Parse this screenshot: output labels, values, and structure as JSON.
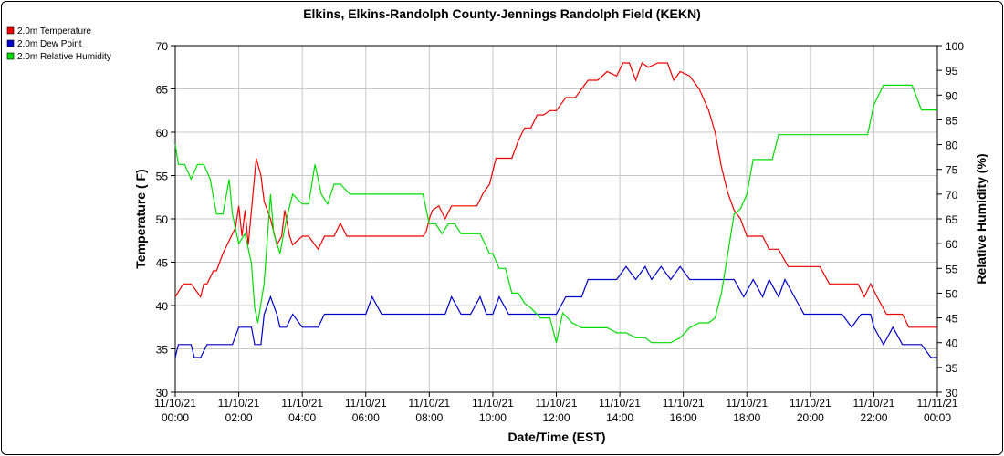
{
  "chart_data": {
    "type": "line",
    "title": "Elkins, Elkins-Randolph County-Jennings Randolph Field (KEKN)",
    "xlabel": "Date/Time (EST)",
    "ylabel": "Temperature ( F)",
    "y2label": "Relative Humidity (%)",
    "ylim": [
      30,
      70
    ],
    "y2lim": [
      30,
      100
    ],
    "yticks": [
      30,
      35,
      40,
      45,
      50,
      55,
      60,
      65,
      70
    ],
    "y2ticks": [
      30,
      35,
      40,
      45,
      50,
      55,
      60,
      65,
      70,
      75,
      80,
      85,
      90,
      95,
      100
    ],
    "xticks": [
      {
        "hour": 0,
        "date": "11/10/21",
        "time": "00:00"
      },
      {
        "hour": 2,
        "date": "11/10/21",
        "time": "02:00"
      },
      {
        "hour": 4,
        "date": "11/10/21",
        "time": "04:00"
      },
      {
        "hour": 6,
        "date": "11/10/21",
        "time": "06:00"
      },
      {
        "hour": 8,
        "date": "11/10/21",
        "time": "08:00"
      },
      {
        "hour": 10,
        "date": "11/10/21",
        "time": "10:00"
      },
      {
        "hour": 12,
        "date": "11/10/21",
        "time": "12:00"
      },
      {
        "hour": 14,
        "date": "11/10/21",
        "time": "14:00"
      },
      {
        "hour": 16,
        "date": "11/10/21",
        "time": "16:00"
      },
      {
        "hour": 18,
        "date": "11/10/21",
        "time": "18:00"
      },
      {
        "hour": 20,
        "date": "11/10/21",
        "time": "20:00"
      },
      {
        "hour": 22,
        "date": "11/10/21",
        "time": "22:00"
      },
      {
        "hour": 24,
        "date": "11/11/21",
        "time": "00:00"
      }
    ],
    "grid": true,
    "legend_position": "top-left",
    "series": [
      {
        "name": "2.0m Temperature",
        "color": "#ee0000",
        "axis": "left",
        "x": [
          0,
          0.25,
          0.5,
          0.8,
          0.9,
          1.0,
          1.2,
          1.3,
          1.5,
          1.7,
          1.9,
          2.0,
          2.1,
          2.2,
          2.3,
          2.5,
          2.55,
          2.7,
          2.8,
          3.0,
          3.1,
          3.2,
          3.35,
          3.45,
          3.6,
          3.7,
          4.0,
          4.2,
          4.5,
          4.7,
          4.9,
          5.0,
          5.2,
          5.4,
          5.6,
          5.7,
          6.0,
          6.5,
          7.0,
          7.5,
          7.8,
          7.9,
          8.0,
          8.1,
          8.3,
          8.5,
          8.7,
          8.8,
          9.0,
          9.5,
          9.7,
          9.9,
          10.1,
          10.3,
          10.6,
          10.8,
          11.0,
          11.2,
          11.4,
          11.6,
          11.8,
          12.0,
          12.3,
          12.6,
          12.8,
          13.0,
          13.3,
          13.6,
          13.9,
          14.1,
          14.3,
          14.5,
          14.7,
          14.9,
          15.2,
          15.5,
          15.7,
          15.9,
          16.2,
          16.5,
          16.8,
          17.0,
          17.2,
          17.4,
          17.6,
          17.8,
          18.0,
          18.2,
          18.5,
          18.7,
          19.0,
          19.3,
          19.6,
          19.8,
          20.0,
          20.3,
          20.6,
          20.9,
          21.2,
          21.5,
          21.7,
          21.9,
          22.1,
          22.4,
          22.7,
          22.9,
          23.1,
          23.4,
          23.7,
          24.0
        ],
        "y": [
          41,
          42.5,
          42.5,
          41,
          42.5,
          42.5,
          44,
          44,
          46,
          47.5,
          49,
          51.5,
          48,
          51,
          47,
          55,
          57,
          55,
          52,
          50,
          48.5,
          47,
          48,
          51,
          48,
          47,
          48,
          48,
          46.5,
          48,
          48,
          48,
          49.5,
          48,
          48,
          48,
          48,
          48,
          48,
          48,
          48,
          48.5,
          50,
          51,
          51.5,
          50,
          51.5,
          51.5,
          51.5,
          51.5,
          53,
          54,
          57,
          57,
          57,
          59,
          60.5,
          60.5,
          62,
          62,
          62.5,
          62.5,
          64,
          64,
          65,
          66,
          66,
          67,
          66.5,
          68,
          68,
          66,
          68,
          67.5,
          68,
          68,
          66,
          67,
          66.5,
          65,
          62.5,
          60,
          56,
          53,
          51,
          50,
          48,
          48,
          48,
          46.5,
          46.5,
          44.5,
          44.5,
          44.5,
          44.5,
          44.5,
          42.5,
          42.5,
          42.5,
          42.5,
          41,
          42.5,
          41,
          39,
          39,
          39,
          37.5,
          37.5,
          37.5,
          37.5
        ]
      },
      {
        "name": "2.0m Dew Point",
        "color": "#0000cc",
        "axis": "left",
        "x": [
          0,
          0.1,
          0.3,
          0.5,
          0.6,
          0.8,
          1.0,
          1.3,
          1.6,
          1.8,
          2.0,
          2.2,
          2.4,
          2.5,
          2.7,
          2.8,
          3.0,
          3.2,
          3.3,
          3.5,
          3.7,
          4.0,
          4.3,
          4.5,
          4.7,
          5.0,
          5.5,
          5.8,
          6.0,
          6.2,
          6.5,
          6.8,
          7.0,
          7.5,
          8.0,
          8.3,
          8.5,
          8.7,
          9.0,
          9.3,
          9.6,
          9.8,
          10.0,
          10.2,
          10.5,
          10.8,
          11.0,
          11.3,
          11.5,
          11.8,
          12.0,
          12.3,
          12.5,
          12.8,
          13.0,
          13.3,
          13.6,
          13.9,
          14.2,
          14.5,
          14.8,
          15.0,
          15.3,
          15.6,
          15.9,
          16.2,
          16.5,
          16.8,
          17.0,
          17.3,
          17.6,
          17.9,
          18.2,
          18.5,
          18.7,
          19.0,
          19.2,
          19.5,
          19.8,
          20.0,
          20.5,
          20.8,
          21.0,
          21.3,
          21.6,
          21.9,
          22.0,
          22.3,
          22.6,
          22.9,
          23.2,
          23.5,
          23.8,
          24.0
        ],
        "y": [
          34,
          35.5,
          35.5,
          35.5,
          34,
          34,
          35.5,
          35.5,
          35.5,
          35.5,
          37.5,
          37.5,
          37.5,
          35.5,
          35.5,
          39,
          41,
          39,
          37.5,
          37.5,
          39,
          37.5,
          37.5,
          37.5,
          39,
          39,
          39,
          39,
          39,
          41,
          39,
          39,
          39,
          39,
          39,
          39,
          39,
          41,
          39,
          39,
          41,
          39,
          39,
          41,
          39,
          39,
          39,
          39,
          39,
          39,
          39,
          41,
          41,
          41,
          43,
          43,
          43,
          43,
          44.5,
          43,
          44.5,
          43,
          44.5,
          43,
          44.5,
          43,
          43,
          43,
          43,
          43,
          43,
          41,
          43,
          41,
          43,
          41,
          43,
          41,
          39,
          39,
          39,
          39,
          39,
          37.5,
          39,
          39,
          37.5,
          35.5,
          37.5,
          35.5,
          35.5,
          35.5,
          34,
          34
        ]
      },
      {
        "name": "2.0m Relative Humidity",
        "color": "#00dd00",
        "axis": "right",
        "x": [
          0,
          0.1,
          0.3,
          0.5,
          0.7,
          0.9,
          1.1,
          1.3,
          1.5,
          1.7,
          1.8,
          2.0,
          2.2,
          2.4,
          2.5,
          2.6,
          2.8,
          3.0,
          3.1,
          3.3,
          3.5,
          3.7,
          4.0,
          4.2,
          4.4,
          4.6,
          4.8,
          5.0,
          5.2,
          5.5,
          5.7,
          6.0,
          6.3,
          6.6,
          7.0,
          7.5,
          7.8,
          8.0,
          8.2,
          8.4,
          8.6,
          8.8,
          9.0,
          9.3,
          9.6,
          9.9,
          10.0,
          10.2,
          10.4,
          10.6,
          10.8,
          11.0,
          11.2,
          11.5,
          11.8,
          12.0,
          12.2,
          12.5,
          12.8,
          13.0,
          13.3,
          13.6,
          13.9,
          14.2,
          14.5,
          14.8,
          15.0,
          15.3,
          15.6,
          15.9,
          16.2,
          16.5,
          16.8,
          17.0,
          17.2,
          17.4,
          17.6,
          17.8,
          18.0,
          18.2,
          18.5,
          18.8,
          19.0,
          19.2,
          19.5,
          19.8,
          20.0,
          20.5,
          20.8,
          21.0,
          21.3,
          21.5,
          21.8,
          22.0,
          22.3,
          22.6,
          22.9,
          23.2,
          23.5,
          23.8,
          24.0
        ],
        "y": [
          80,
          76,
          76,
          73,
          76,
          76,
          73,
          66,
          66,
          73,
          66,
          60,
          62,
          56,
          47,
          44,
          52,
          70,
          62,
          58,
          65,
          70,
          68,
          68,
          76,
          70,
          68,
          72,
          72,
          70,
          70,
          70,
          70,
          70,
          70,
          70,
          70,
          64,
          64,
          62,
          64,
          64,
          62,
          62,
          62,
          58,
          58,
          55,
          55,
          50,
          50,
          48,
          47,
          45,
          45,
          40,
          46,
          44,
          43,
          43,
          43,
          43,
          42,
          42,
          41,
          41,
          40,
          40,
          40,
          41,
          43,
          44,
          44,
          45,
          50,
          58,
          66,
          67,
          70,
          77,
          77,
          77,
          82,
          82,
          82,
          82,
          82,
          82,
          82,
          82,
          82,
          82,
          82,
          88,
          92,
          92,
          92,
          92,
          87,
          87,
          87
        ]
      }
    ]
  }
}
